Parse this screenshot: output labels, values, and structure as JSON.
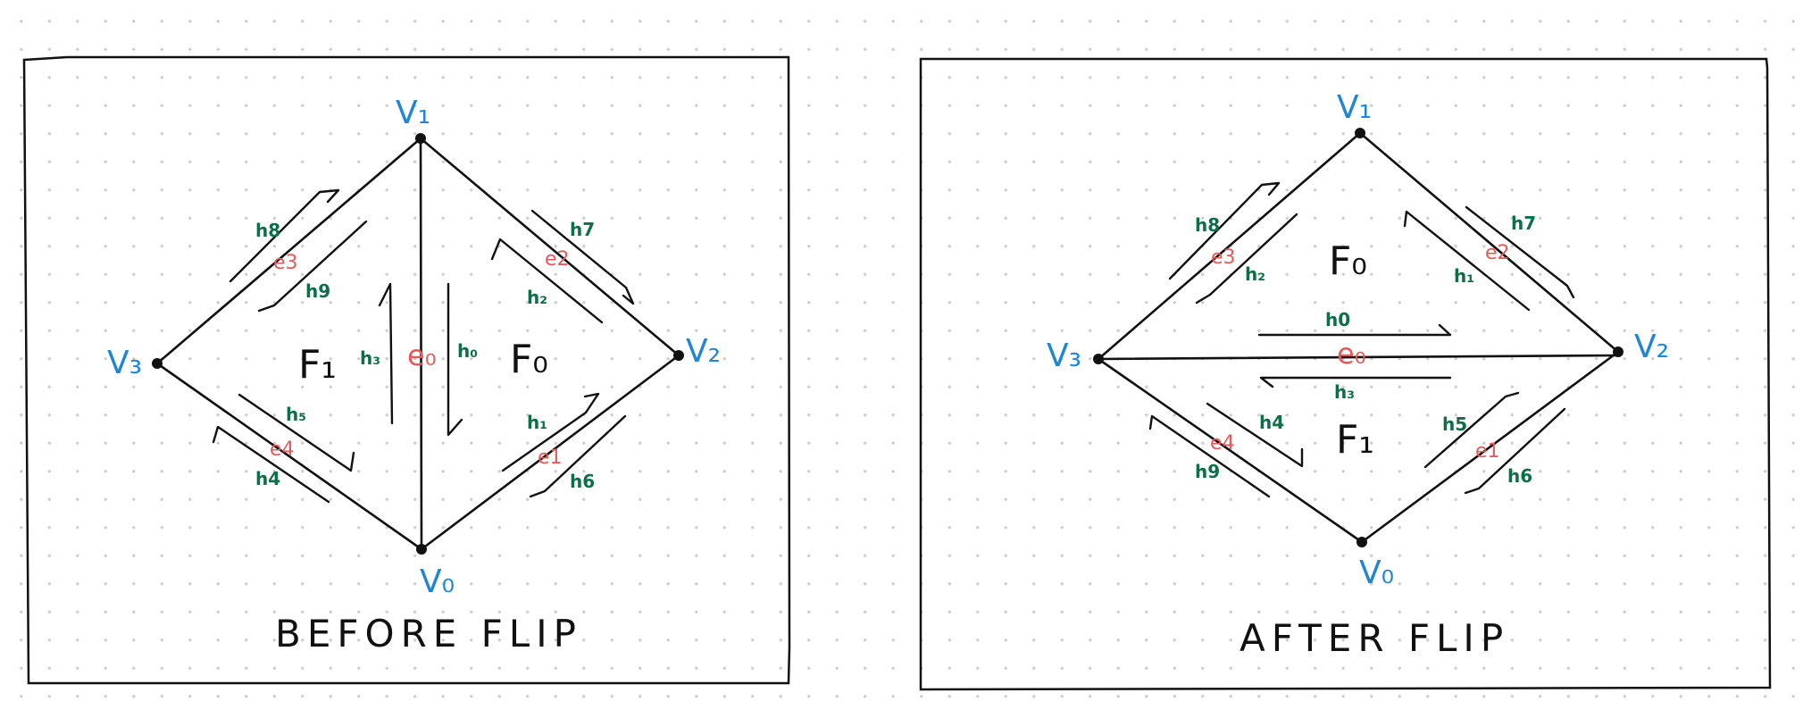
{
  "panels": [
    {
      "caption": "BEFORE FLIP",
      "vertices": {
        "v0": "V₀",
        "v1": "V₁",
        "v2": "V₂",
        "v3": "V₃"
      },
      "faces": {
        "f0": "F₀",
        "f1": "F₁"
      },
      "edges": {
        "e0": "e₀",
        "e1": "e1",
        "e2": "e2",
        "e3": "e3",
        "e4": "e4"
      },
      "halfedges": {
        "h0": "h₀",
        "h1": "h₁",
        "h2": "h₂",
        "h3": "h₃",
        "h4": "h4",
        "h5": "h₅",
        "h6": "h6",
        "h7": "h7",
        "h8": "h8",
        "h9": "h9"
      }
    },
    {
      "caption": "AFTER FLIP",
      "vertices": {
        "v0": "V₀",
        "v1": "V₁",
        "v2": "V₂",
        "v3": "V₃"
      },
      "faces": {
        "f0": "F₀",
        "f1": "F₁"
      },
      "edges": {
        "e0": "e₀",
        "e1": "e1",
        "e2": "e2",
        "e3": "e3",
        "e4": "e4"
      },
      "halfedges": {
        "h0": "h0",
        "h1": "h₁",
        "h2": "h₂",
        "h3": "h₃",
        "h4": "h4",
        "h5": "h5",
        "h6": "h6",
        "h7": "h7",
        "h8": "h8",
        "h9": "h9"
      }
    }
  ],
  "colors": {
    "vertex": "#1f86d6",
    "edge": "#e45a5a",
    "halfedge": "#0d6e47",
    "ink": "#111111"
  }
}
